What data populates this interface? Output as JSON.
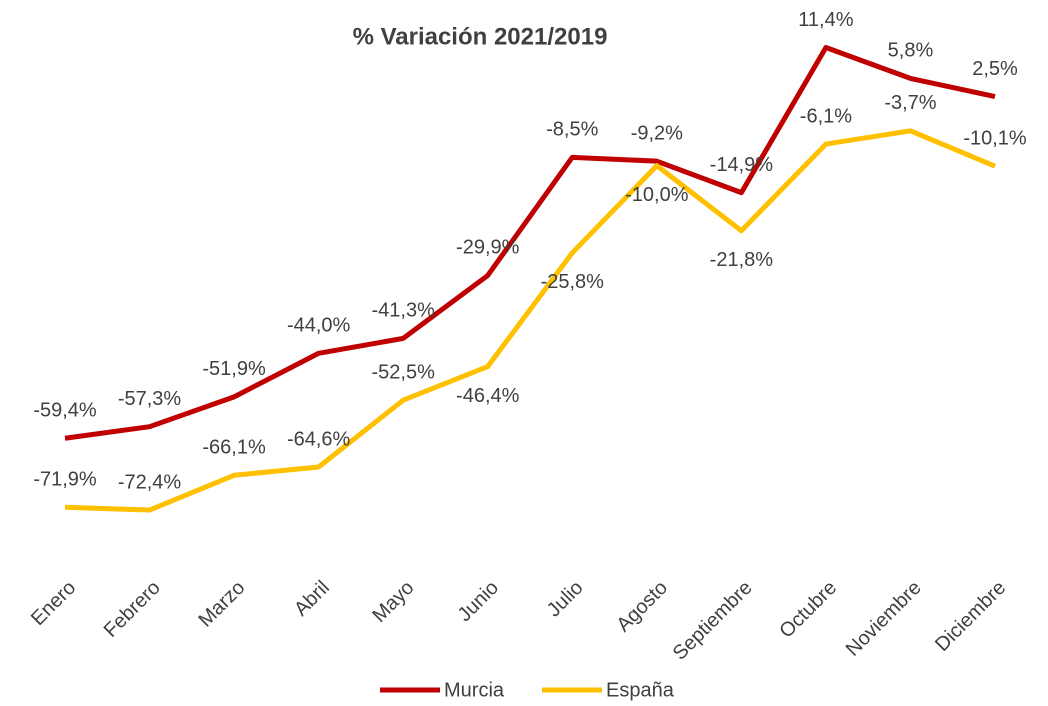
{
  "chart_data": {
    "type": "line",
    "title": "% Variación 2021/2019",
    "categories": [
      "Enero",
      "Febrero",
      "Marzo",
      "Abril",
      "Mayo",
      "Junio",
      "Julio",
      "Agosto",
      "Septiembre",
      "Octubre",
      "Noviembre",
      "Diciembre"
    ],
    "series": [
      {
        "name": "Murcia",
        "color": "#c00000",
        "values": [
          -59.4,
          -57.3,
          -51.9,
          -44.0,
          -41.3,
          -29.9,
          -8.5,
          -9.2,
          -14.9,
          11.4,
          5.8,
          2.5
        ],
        "value_labels": [
          "-59,4%",
          "-57,3%",
          "-51,9%",
          "-44,0%",
          "-41,3%",
          "-29,9%",
          "-8,5%",
          "-9,2%",
          "-14,9%",
          "11,4%",
          "5,8%",
          "2,5%"
        ]
      },
      {
        "name": "España",
        "color": "#ffc000",
        "values": [
          -71.9,
          -72.4,
          -66.1,
          -64.6,
          -52.5,
          -46.4,
          -25.8,
          -10.0,
          -21.8,
          -6.1,
          -3.7,
          -10.1
        ],
        "value_labels": [
          "-71,9%",
          "-72,4%",
          "-66,1%",
          "-64,6%",
          "-52,5%",
          "-46,4%",
          "-25,8%",
          "-10,0%",
          "-21,8%",
          "-6,1%",
          "-3,7%",
          "-10,1%"
        ]
      }
    ],
    "ylim": [
      -80,
      20
    ],
    "legend": "bottom"
  }
}
